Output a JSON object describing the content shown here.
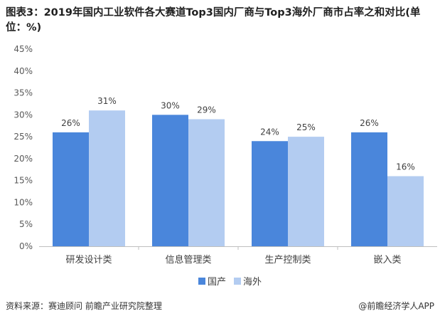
{
  "title": "图表3：2019年国内工业软件各大赛道Top3国内厂商与Top3海外厂商市占率之和对比(单位：%)",
  "footer": {
    "source": "资料来源：赛迪顾问 前瞻产业研究院整理",
    "brand": "@前瞻经济学人APP"
  },
  "colors": {
    "domestic": "#4a86db",
    "overseas": "#b3ccf1",
    "axis": "#bfbfbf"
  },
  "chart_data": {
    "type": "bar",
    "categories": [
      "研发设计类",
      "信息管理类",
      "生产控制类",
      "嵌入类"
    ],
    "series": [
      {
        "name": "国产",
        "values": [
          26,
          30,
          24,
          26
        ]
      },
      {
        "name": "海外",
        "values": [
          31,
          29,
          25,
          16
        ]
      }
    ],
    "data_labels": [
      [
        "26%",
        "30%",
        "24%",
        "26%"
      ],
      [
        "31%",
        "29%",
        "25%",
        "16%"
      ]
    ],
    "yticks": [
      "0%",
      "5%",
      "10%",
      "15%",
      "20%",
      "25%",
      "30%",
      "35%",
      "40%",
      "45%"
    ],
    "ylim": [
      0,
      45
    ],
    "grid": false,
    "legend": "bottom"
  }
}
